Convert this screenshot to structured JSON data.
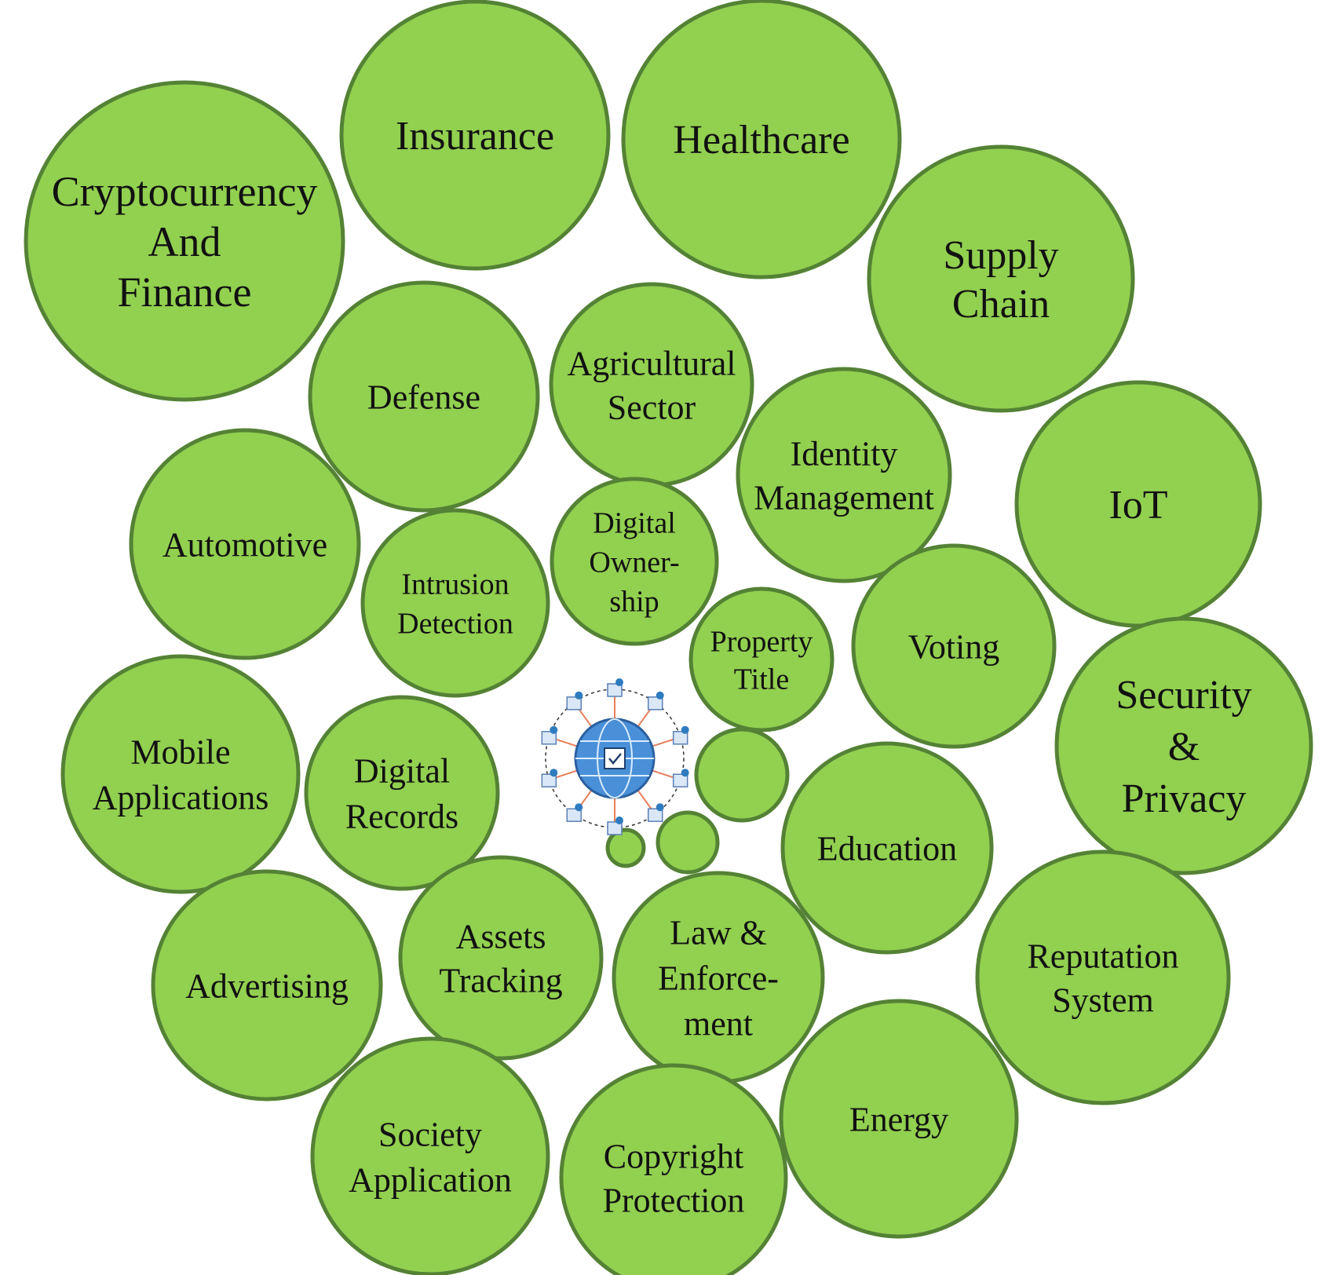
{
  "colors": {
    "bubble_fill": "#92d050",
    "bubble_stroke": "#548235",
    "text": "#111111",
    "hub_globe": "#4a90d9"
  },
  "center_icon": "blockchain-network-icon",
  "bubbles": [
    {
      "id": "cryptocurrency-and-finance",
      "lines": [
        "Cryptocurrency",
        "And",
        "Finance"
      ]
    },
    {
      "id": "insurance",
      "lines": [
        "Insurance"
      ]
    },
    {
      "id": "healthcare",
      "lines": [
        "Healthcare"
      ]
    },
    {
      "id": "supply-chain",
      "lines": [
        "Supply",
        "Chain"
      ]
    },
    {
      "id": "defense",
      "lines": [
        "Defense"
      ]
    },
    {
      "id": "agricultural-sector",
      "lines": [
        "Agricultural",
        "Sector"
      ]
    },
    {
      "id": "identity-management",
      "lines": [
        "Identity",
        "Management"
      ]
    },
    {
      "id": "iot",
      "lines": [
        "IoT"
      ]
    },
    {
      "id": "automotive",
      "lines": [
        "Automotive"
      ]
    },
    {
      "id": "intrusion-detection",
      "lines": [
        "Intrusion",
        "Detection"
      ]
    },
    {
      "id": "digital-ownership",
      "lines": [
        "Digital",
        "Owner-",
        "ship"
      ]
    },
    {
      "id": "property-title",
      "lines": [
        "Property",
        "Title"
      ]
    },
    {
      "id": "voting",
      "lines": [
        "Voting"
      ]
    },
    {
      "id": "security-and-privacy",
      "lines": [
        "Security",
        "&",
        "Privacy"
      ]
    },
    {
      "id": "mobile-applications",
      "lines": [
        "Mobile",
        "Applications"
      ]
    },
    {
      "id": "digital-records",
      "lines": [
        "Digital",
        "Records"
      ]
    },
    {
      "id": "education",
      "lines": [
        "Education"
      ]
    },
    {
      "id": "reputation-system",
      "lines": [
        "Reputation",
        "System"
      ]
    },
    {
      "id": "advertising",
      "lines": [
        "Advertising"
      ]
    },
    {
      "id": "assets-tracking",
      "lines": [
        "Assets",
        "Tracking"
      ]
    },
    {
      "id": "law-and-enforcement",
      "lines": [
        "Law &",
        "Enforce-",
        "ment"
      ]
    },
    {
      "id": "energy",
      "lines": [
        "Energy"
      ]
    },
    {
      "id": "society-application",
      "lines": [
        "Society",
        "Application"
      ]
    },
    {
      "id": "copyright-protection",
      "lines": [
        "Copyright",
        "Protection"
      ]
    },
    {
      "id": "small-bubble-1",
      "lines": []
    },
    {
      "id": "small-bubble-2",
      "lines": []
    },
    {
      "id": "small-bubble-3",
      "lines": []
    }
  ]
}
